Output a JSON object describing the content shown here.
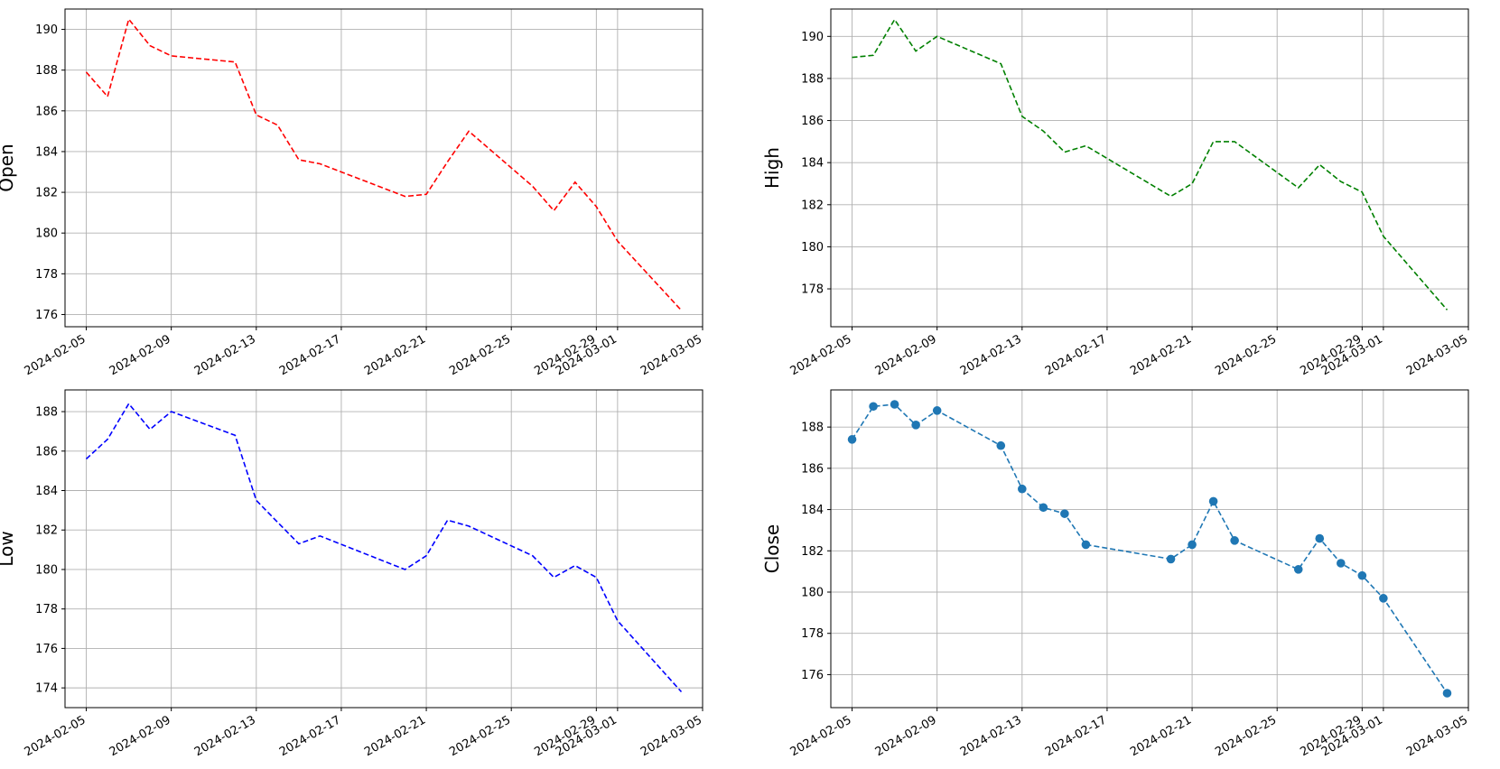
{
  "x_ticks": [
    "2024-02-05",
    "2024-02-09",
    "2024-02-13",
    "2024-02-17",
    "2024-02-21",
    "2024-02-25",
    "2024-02-29",
    "2024-03-01",
    "2024-03-05"
  ],
  "chart_data": [
    {
      "type": "line",
      "ylabel": "Open",
      "color": "#ff0000",
      "linestyle": "dashed",
      "markers": false,
      "grid": true,
      "xlim": [
        "2024-02-04",
        "2024-03-05"
      ],
      "ylim": [
        175.4,
        191
      ],
      "yticks": [
        176,
        178,
        180,
        182,
        184,
        186,
        188,
        190
      ],
      "x": [
        "2024-02-05",
        "2024-02-06",
        "2024-02-07",
        "2024-02-08",
        "2024-02-09",
        "2024-02-12",
        "2024-02-13",
        "2024-02-14",
        "2024-02-15",
        "2024-02-16",
        "2024-02-20",
        "2024-02-21",
        "2024-02-22",
        "2024-02-23",
        "2024-02-26",
        "2024-02-27",
        "2024-02-28",
        "2024-02-29",
        "2024-03-01",
        "2024-03-04"
      ],
      "values": [
        187.9,
        186.7,
        190.5,
        189.2,
        188.7,
        188.4,
        185.8,
        185.3,
        183.6,
        183.4,
        181.8,
        181.9,
        183.5,
        185.0,
        182.3,
        181.1,
        182.5,
        181.3,
        179.6,
        176.2
      ]
    },
    {
      "type": "line",
      "ylabel": "High",
      "color": "#008000",
      "linestyle": "dashed",
      "markers": false,
      "grid": true,
      "xlim": [
        "2024-02-04",
        "2024-03-05"
      ],
      "ylim": [
        176.2,
        191.3
      ],
      "yticks": [
        178,
        180,
        182,
        184,
        186,
        188,
        190
      ],
      "x": [
        "2024-02-05",
        "2024-02-06",
        "2024-02-07",
        "2024-02-08",
        "2024-02-09",
        "2024-02-12",
        "2024-02-13",
        "2024-02-14",
        "2024-02-15",
        "2024-02-16",
        "2024-02-20",
        "2024-02-21",
        "2024-02-22",
        "2024-02-23",
        "2024-02-26",
        "2024-02-27",
        "2024-02-28",
        "2024-02-29",
        "2024-03-01",
        "2024-03-04"
      ],
      "values": [
        189.0,
        189.1,
        190.8,
        189.3,
        190.0,
        188.7,
        186.2,
        185.5,
        184.5,
        184.8,
        182.4,
        183.0,
        185.0,
        185.0,
        182.8,
        183.9,
        183.1,
        182.6,
        180.5,
        177.0
      ]
    },
    {
      "type": "line",
      "ylabel": "Low",
      "color": "#0000ff",
      "linestyle": "dashed",
      "markers": false,
      "grid": true,
      "xlim": [
        "2024-02-04",
        "2024-03-05"
      ],
      "ylim": [
        173.0,
        189.1
      ],
      "yticks": [
        174,
        176,
        178,
        180,
        182,
        184,
        186,
        188
      ],
      "x": [
        "2024-02-05",
        "2024-02-06",
        "2024-02-07",
        "2024-02-08",
        "2024-02-09",
        "2024-02-12",
        "2024-02-13",
        "2024-02-14",
        "2024-02-15",
        "2024-02-16",
        "2024-02-20",
        "2024-02-21",
        "2024-02-22",
        "2024-02-23",
        "2024-02-26",
        "2024-02-27",
        "2024-02-28",
        "2024-02-29",
        "2024-03-01",
        "2024-03-04"
      ],
      "values": [
        185.6,
        186.6,
        188.4,
        187.1,
        188.0,
        186.8,
        183.5,
        182.4,
        181.3,
        181.7,
        180.0,
        180.7,
        182.5,
        182.2,
        180.7,
        179.6,
        180.2,
        179.6,
        177.4,
        173.8
      ]
    },
    {
      "type": "line",
      "ylabel": "Close",
      "color": "#1f77b4",
      "linestyle": "dashed",
      "markers": true,
      "grid": true,
      "xlim": [
        "2024-02-04",
        "2024-03-05"
      ],
      "ylim": [
        174.4,
        189.8
      ],
      "yticks": [
        176,
        178,
        180,
        182,
        184,
        186,
        188
      ],
      "x": [
        "2024-02-05",
        "2024-02-06",
        "2024-02-07",
        "2024-02-08",
        "2024-02-09",
        "2024-02-12",
        "2024-02-13",
        "2024-02-14",
        "2024-02-15",
        "2024-02-16",
        "2024-02-20",
        "2024-02-21",
        "2024-02-22",
        "2024-02-23",
        "2024-02-26",
        "2024-02-27",
        "2024-02-28",
        "2024-02-29",
        "2024-03-01",
        "2024-03-04"
      ],
      "values": [
        187.4,
        189.0,
        189.1,
        188.1,
        188.8,
        187.1,
        185.0,
        184.1,
        183.8,
        182.3,
        181.6,
        182.3,
        184.4,
        182.5,
        181.1,
        182.6,
        181.4,
        180.8,
        179.7,
        175.1
      ]
    }
  ]
}
